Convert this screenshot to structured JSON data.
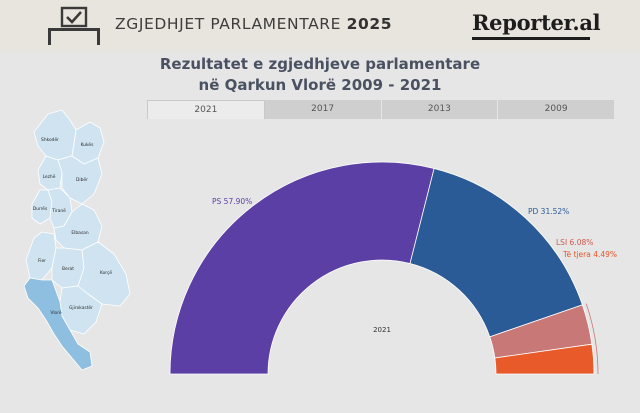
{
  "header": {
    "title_prefix": "ZGJEDHJET PARLAMENTARE",
    "title_year": "2025",
    "logo": "Reporter.al"
  },
  "chart_title_line1": "Rezultatet e zgjedhjeve parlamentare",
  "chart_title_line2": "në Qarkun Vlorë 2009 - 2021",
  "tabs": [
    {
      "label": "2021",
      "active": true
    },
    {
      "label": "2017",
      "active": false
    },
    {
      "label": "2013",
      "active": false
    },
    {
      "label": "2009",
      "active": false
    }
  ],
  "map": {
    "highlighted_region": "Vlorë",
    "highlight_color": "#8fbfe0",
    "base_color": "#cfe3f1",
    "regions": [
      "Shkodër",
      "Kukës",
      "Lezhë",
      "Dibër",
      "Durrës",
      "Tiranë",
      "Elbasan",
      "Fier",
      "Berat",
      "Korçë",
      "Gjirokastër",
      "Vlorë"
    ]
  },
  "chart_data": {
    "type": "pie",
    "variant": "semi-donut",
    "center_label": "2021",
    "series": [
      {
        "name": "PS",
        "value": 57.9,
        "label": "PS 57.90%",
        "color": "#5b3fa5",
        "label_color": "#5b3fa5"
      },
      {
        "name": "PD",
        "value": 31.52,
        "label": "PD 31.52%",
        "color": "#2a5b97",
        "label_color": "#2a5b97"
      },
      {
        "name": "LSI",
        "value": 6.08,
        "label": "LSI 6.08%",
        "color": "#c97878",
        "label_color": "#d2574e"
      },
      {
        "name": "Të tjera",
        "value": 4.49,
        "label": "Të tjera 4.49%",
        "color": "#e85a2a",
        "label_color": "#e8562a"
      }
    ]
  }
}
